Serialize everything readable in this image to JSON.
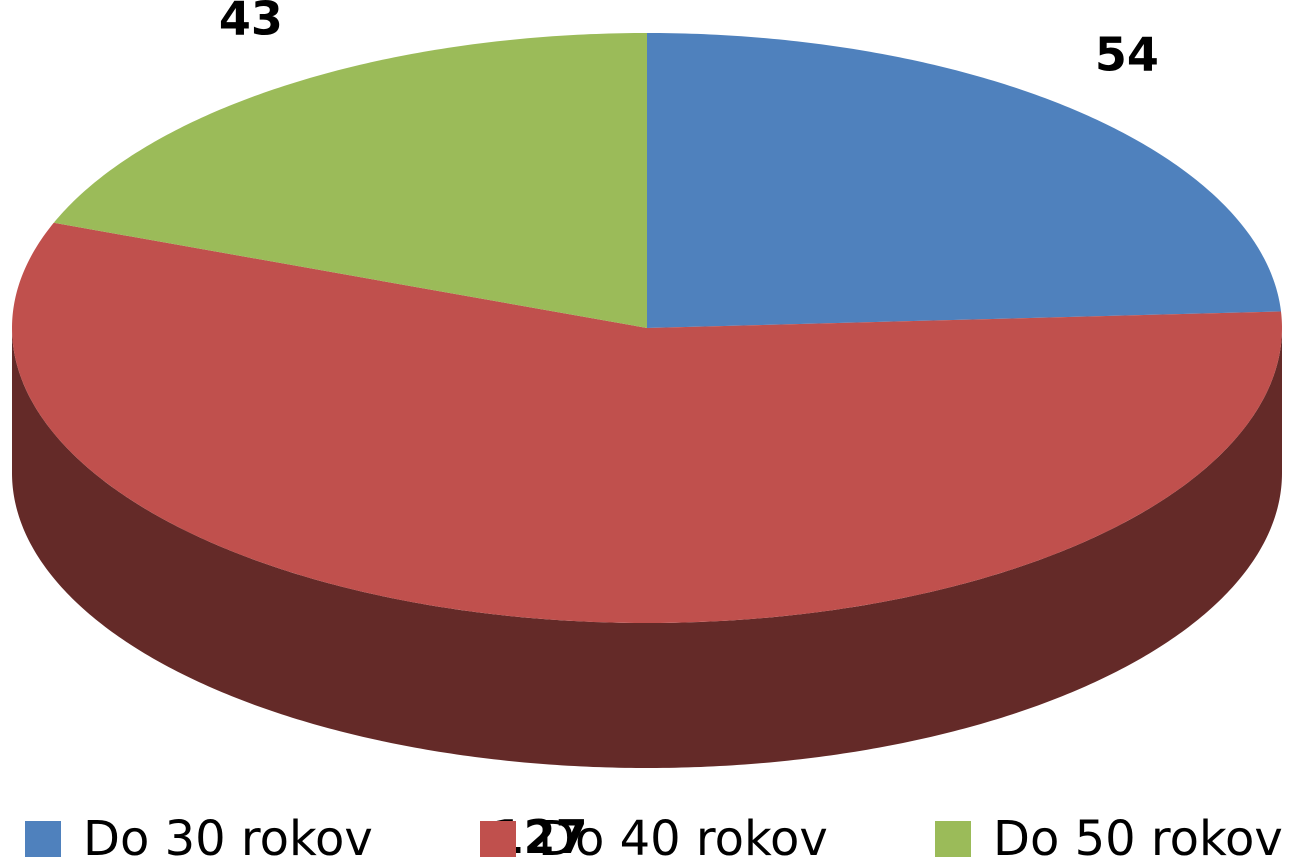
{
  "chart_data": {
    "type": "pie3d",
    "categories": [
      "Do 30 rokov",
      "Do 40 rokov",
      "Do 50 rokov"
    ],
    "values": [
      54,
      127,
      43
    ],
    "colors": [
      "#4f81bd",
      "#c0504d",
      "#9bbb59"
    ],
    "legend": "bottom"
  }
}
